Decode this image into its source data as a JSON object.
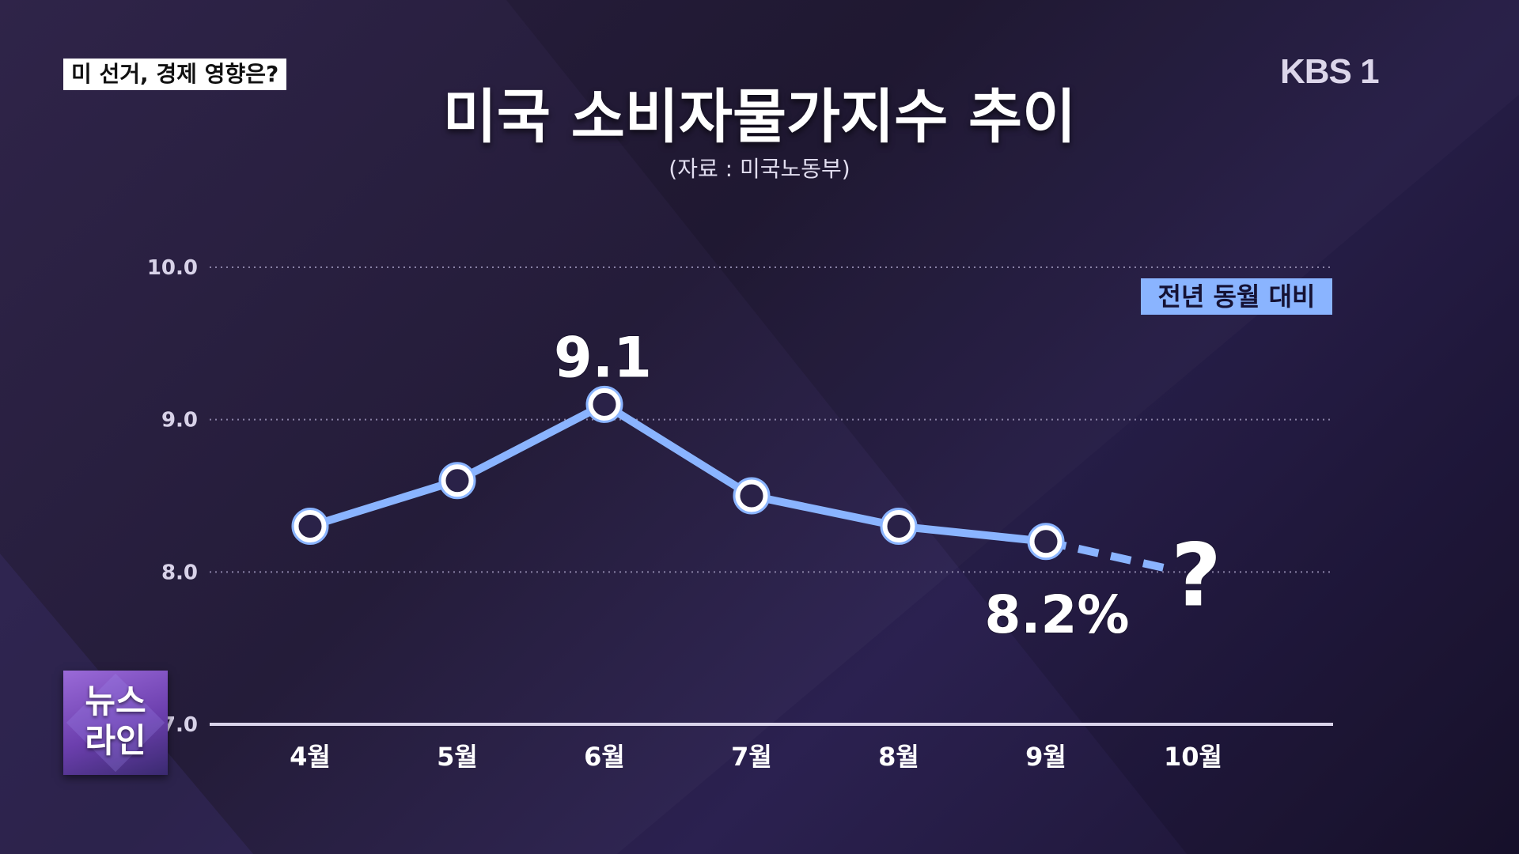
{
  "header": {
    "topic_tag": "미 선거, 경제 영향은?",
    "channel_logo": "KBS 1",
    "program_badge": "뉴스\n라인"
  },
  "colors": {
    "line": "#8ab4ff",
    "point_fill": "#2a2248",
    "legend_bg": "#8ab4ff",
    "text": "#ffffff"
  },
  "chart_data": {
    "type": "line",
    "title": "미국 소비자물가지수 추이",
    "subtitle": "(자료 : 미국노동부)",
    "legend_note": "전년 동월 대비",
    "categories": [
      "4월",
      "5월",
      "6월",
      "7월",
      "8월",
      "9월",
      "10월"
    ],
    "series": [
      {
        "values": [
          8.3,
          8.6,
          9.1,
          8.5,
          8.3,
          8.2,
          null
        ]
      }
    ],
    "projection": {
      "from": "9월",
      "to": "10월",
      "to_value": 8.0,
      "style": "dashed"
    },
    "ylim": [
      7.0,
      10.0
    ],
    "yticks": [
      "7.0",
      "8.0",
      "9.0",
      "10.0"
    ],
    "annotations": [
      {
        "category": "6월",
        "value": 9.1,
        "text": "9.1"
      },
      {
        "category": "9월",
        "value": 8.2,
        "text": "8.2%"
      },
      {
        "category": "10월",
        "value": 8.0,
        "text": "?"
      }
    ],
    "grid": true
  }
}
